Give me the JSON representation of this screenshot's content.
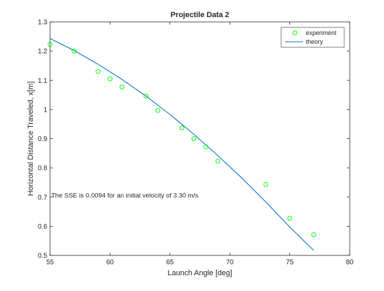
{
  "chart_data": {
    "type": "scatter",
    "title": "Projectile Data 2",
    "xlabel": "Launch Angle [deg]",
    "ylabel": "Horizontal Distance Traveled, x[m]",
    "xlim": [
      55,
      80
    ],
    "ylim": [
      0.5,
      1.3
    ],
    "xticks": [
      "55",
      "60",
      "65",
      "70",
      "75",
      "80"
    ],
    "yticks": [
      "0.5",
      "0.6",
      "0.7",
      "0.8",
      "0.9",
      "1",
      "1.1",
      "1.2",
      "1.3"
    ],
    "grid": false,
    "legend_position": "top-right",
    "series": [
      {
        "name": "experiment",
        "type": "scatter",
        "color": "#00ff00",
        "marker": "circle-open",
        "x": [
          55,
          57,
          59,
          60,
          61,
          63,
          64,
          66,
          67,
          68,
          69,
          73,
          75,
          77
        ],
        "y": [
          1.223,
          1.2,
          1.13,
          1.105,
          1.077,
          1.046,
          0.997,
          0.937,
          0.9,
          0.872,
          0.823,
          0.743,
          0.627,
          0.571
        ]
      },
      {
        "name": "theory",
        "type": "line",
        "color": "#0072bd",
        "x": [
          55,
          57,
          59,
          61,
          63,
          65,
          67,
          69,
          71,
          73,
          75,
          77
        ],
        "y": [
          1.243,
          1.202,
          1.155,
          1.103,
          1.046,
          0.983,
          0.915,
          0.842,
          0.765,
          0.683,
          0.597,
          0.517
        ]
      }
    ],
    "annotations": [
      {
        "text": "The SSE is 0.0094 for an initial velocity of 3.30 m/s",
        "x": 55.1,
        "y": 0.698
      }
    ]
  }
}
